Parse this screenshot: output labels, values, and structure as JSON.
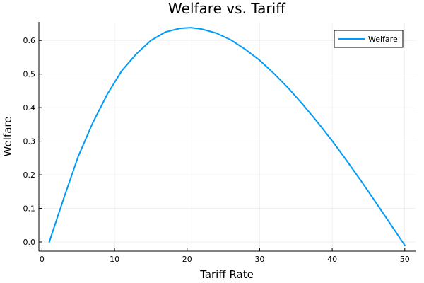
{
  "chart_data": {
    "type": "line",
    "title": "Welfare vs. Tariff",
    "xlabel": "Tariff Rate",
    "ylabel": "Welfare",
    "xlim": [
      0,
      50
    ],
    "ylim": [
      0.0,
      0.6
    ],
    "xticks": [
      0,
      10,
      20,
      30,
      40,
      50
    ],
    "yticks": [
      0.0,
      0.1,
      0.2,
      0.3,
      0.4,
      0.5,
      0.6
    ],
    "xtick_labels": [
      "0",
      "10",
      "20",
      "30",
      "40",
      "50"
    ],
    "ytick_labels": [
      "0.0",
      "0.1",
      "0.2",
      "0.3",
      "0.4",
      "0.5",
      "0.6"
    ],
    "grid": true,
    "legend_position": "top-right",
    "series": [
      {
        "name": "Welfare",
        "color": "#009af9",
        "x": [
          1,
          3,
          5,
          7,
          9,
          11,
          13,
          15,
          17,
          19,
          20.5,
          22,
          24,
          26,
          28,
          30,
          32,
          34,
          36,
          38,
          40,
          42,
          44,
          46,
          48,
          50
        ],
        "y": [
          0.0,
          0.13,
          0.255,
          0.355,
          0.44,
          0.51,
          0.56,
          0.6,
          0.625,
          0.636,
          0.638,
          0.634,
          0.622,
          0.602,
          0.574,
          0.541,
          0.501,
          0.457,
          0.408,
          0.356,
          0.301,
          0.242,
          0.181,
          0.118,
          0.054,
          -0.01
        ]
      }
    ]
  }
}
